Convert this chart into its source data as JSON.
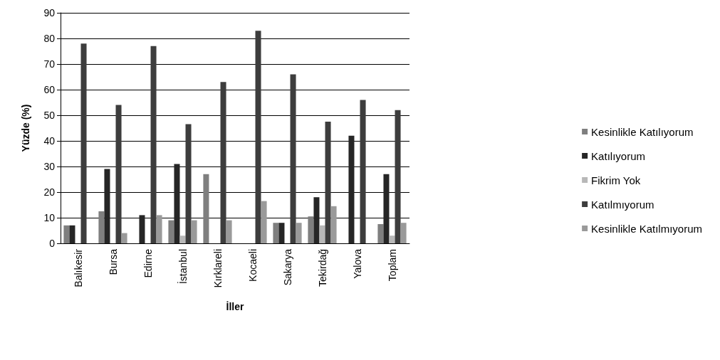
{
  "chart_data": {
    "type": "bar",
    "xlabel": "İller",
    "ylabel": "Yüzde (%)",
    "categories": [
      "Balıkesir",
      "Bursa",
      "Edirne",
      "İstanbul",
      "Kırklareli",
      "Kocaeli",
      "Sakarya",
      "Tekirdağ",
      "Yalova",
      "Toplam"
    ],
    "series": [
      {
        "name": "Kesinlikle Katılıyorum",
        "color": "#7f7f7f",
        "values": [
          7,
          12.5,
          0,
          9,
          27,
          0,
          8,
          10.5,
          0,
          7.5
        ]
      },
      {
        "name": "Katılıyorum",
        "color": "#262626",
        "values": [
          7,
          29,
          11,
          31,
          0,
          0,
          8,
          18,
          42,
          27
        ]
      },
      {
        "name": "Fikrim Yok",
        "color": "#b8b8b8",
        "values": [
          0,
          0,
          0,
          3,
          0,
          0,
          0,
          7,
          0,
          3
        ]
      },
      {
        "name": "Katılmıyorum",
        "color": "#3d3d3d",
        "values": [
          78,
          54,
          77,
          46.5,
          63,
          83,
          66,
          47.5,
          56,
          52
        ]
      },
      {
        "name": "Kesinlikle Katılmıyorum",
        "color": "#9a9a9a",
        "values": [
          0,
          4,
          11,
          9,
          9,
          16.5,
          8,
          14.5,
          0,
          8
        ]
      }
    ],
    "ylim": [
      0,
      90
    ],
    "yticks": [
      0,
      10,
      20,
      30,
      40,
      50,
      60,
      70,
      80,
      90
    ],
    "grid": "y",
    "legend": "right"
  }
}
